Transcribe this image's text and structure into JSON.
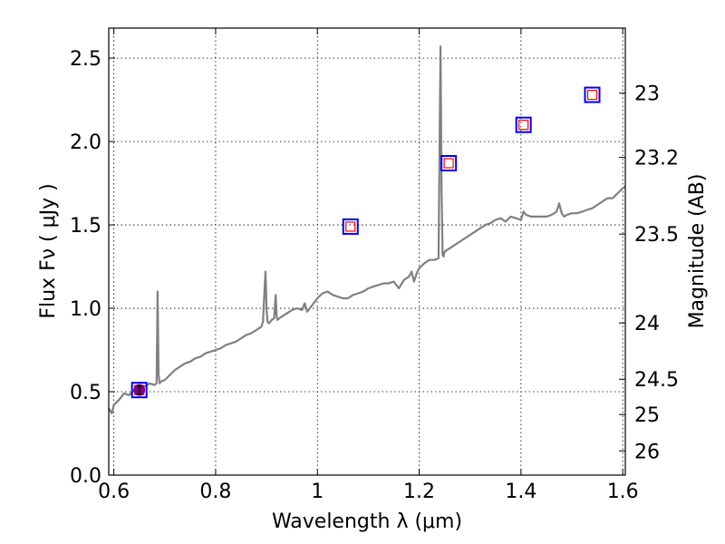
{
  "chart_data": {
    "type": "line",
    "xlabel": "Wavelength  λ (μm)",
    "ylabel": "Flux  Fν  ( μJy )",
    "y2label": "Magnitude (AB)",
    "xlim": [
      0.59,
      1.605
    ],
    "ylim": [
      0.0,
      2.68
    ],
    "grid": true,
    "x_ticks": [
      {
        "value": 0.6,
        "label": "0.6"
      },
      {
        "value": 0.8,
        "label": "0.8"
      },
      {
        "value": 1.0,
        "label": "1"
      },
      {
        "value": 1.2,
        "label": "1.2"
      },
      {
        "value": 1.4,
        "label": "1.4"
      },
      {
        "value": 1.6,
        "label": "1.6"
      }
    ],
    "y_ticks": [
      {
        "value": 0.0,
        "label": "0.0"
      },
      {
        "value": 0.5,
        "label": "0.5"
      },
      {
        "value": 1.0,
        "label": "1.0"
      },
      {
        "value": 1.5,
        "label": "1.5"
      },
      {
        "value": 2.0,
        "label": "2.0"
      },
      {
        "value": 2.5,
        "label": "2.5"
      }
    ],
    "y2_ticks": [
      {
        "flux": 2.29,
        "label": "23"
      },
      {
        "flux": 1.905,
        "label": "23.2"
      },
      {
        "flux": 1.445,
        "label": "23.5"
      },
      {
        "flux": 0.912,
        "label": "24"
      },
      {
        "flux": 0.575,
        "label": "24.5"
      },
      {
        "flux": 0.363,
        "label": "25"
      },
      {
        "flux": 0.145,
        "label": "26"
      }
    ],
    "colors": {
      "spectrum": "#808080",
      "model_marker_outer": "#0000ff",
      "model_marker_inner": "#ff0000",
      "observed_marker": "#800080",
      "grid": "#000000"
    },
    "series": [
      {
        "name": "spectrum",
        "x": [
          0.59,
          0.596,
          0.6,
          0.61,
          0.62,
          0.63,
          0.64,
          0.65,
          0.66,
          0.67,
          0.68,
          0.684,
          0.686,
          0.688,
          0.69,
          0.692,
          0.7,
          0.71,
          0.72,
          0.73,
          0.74,
          0.75,
          0.76,
          0.77,
          0.78,
          0.79,
          0.8,
          0.81,
          0.82,
          0.83,
          0.84,
          0.85,
          0.86,
          0.87,
          0.88,
          0.89,
          0.893,
          0.896,
          0.898,
          0.9,
          0.902,
          0.905,
          0.91,
          0.915,
          0.918,
          0.92,
          0.922,
          0.925,
          0.93,
          0.94,
          0.95,
          0.96,
          0.97,
          0.975,
          0.98,
          0.99,
          1.0,
          1.01,
          1.02,
          1.03,
          1.04,
          1.05,
          1.06,
          1.07,
          1.08,
          1.09,
          1.1,
          1.11,
          1.12,
          1.13,
          1.14,
          1.15,
          1.16,
          1.17,
          1.18,
          1.185,
          1.19,
          1.195,
          1.2,
          1.21,
          1.22,
          1.23,
          1.238,
          1.242,
          1.244,
          1.246,
          1.248,
          1.25,
          1.255,
          1.26,
          1.27,
          1.28,
          1.29,
          1.3,
          1.31,
          1.32,
          1.33,
          1.34,
          1.35,
          1.36,
          1.37,
          1.38,
          1.39,
          1.4,
          1.405,
          1.41,
          1.42,
          1.43,
          1.44,
          1.45,
          1.46,
          1.47,
          1.475,
          1.48,
          1.485,
          1.49,
          1.5,
          1.51,
          1.52,
          1.53,
          1.54,
          1.55,
          1.56,
          1.57,
          1.58,
          1.59,
          1.6,
          1.605
        ],
        "values": [
          0.4,
          0.37,
          0.42,
          0.45,
          0.49,
          0.48,
          0.51,
          0.52,
          0.53,
          0.55,
          0.54,
          0.55,
          1.1,
          0.6,
          0.55,
          0.56,
          0.57,
          0.6,
          0.63,
          0.65,
          0.67,
          0.68,
          0.7,
          0.71,
          0.73,
          0.74,
          0.75,
          0.76,
          0.78,
          0.79,
          0.8,
          0.82,
          0.84,
          0.85,
          0.87,
          0.89,
          0.92,
          1.1,
          1.22,
          1.0,
          0.92,
          0.91,
          0.93,
          0.94,
          1.08,
          0.95,
          0.93,
          0.94,
          0.95,
          0.97,
          0.99,
          1.0,
          0.99,
          1.03,
          0.98,
          1.02,
          1.06,
          1.09,
          1.1,
          1.08,
          1.07,
          1.06,
          1.06,
          1.08,
          1.09,
          1.1,
          1.12,
          1.13,
          1.14,
          1.15,
          1.15,
          1.16,
          1.12,
          1.17,
          1.19,
          1.22,
          1.16,
          1.21,
          1.24,
          1.27,
          1.29,
          1.29,
          1.3,
          2.57,
          1.7,
          1.32,
          1.31,
          1.34,
          1.35,
          1.36,
          1.38,
          1.4,
          1.42,
          1.44,
          1.46,
          1.48,
          1.5,
          1.51,
          1.53,
          1.54,
          1.52,
          1.55,
          1.54,
          1.53,
          1.58,
          1.56,
          1.55,
          1.55,
          1.55,
          1.55,
          1.56,
          1.58,
          1.63,
          1.57,
          1.55,
          1.56,
          1.57,
          1.57,
          1.58,
          1.59,
          1.6,
          1.62,
          1.64,
          1.66,
          1.66,
          1.69,
          1.72,
          1.73
        ]
      },
      {
        "name": "model photometry",
        "marker": "square",
        "x": [
          0.65,
          1.065,
          1.258,
          1.405,
          1.54
        ],
        "values": [
          0.51,
          1.49,
          1.87,
          2.1,
          2.28
        ]
      },
      {
        "name": "observed",
        "marker": "circle",
        "x": [
          0.65
        ],
        "values": [
          0.51
        ],
        "yerr": [
          0.025
        ]
      }
    ]
  }
}
